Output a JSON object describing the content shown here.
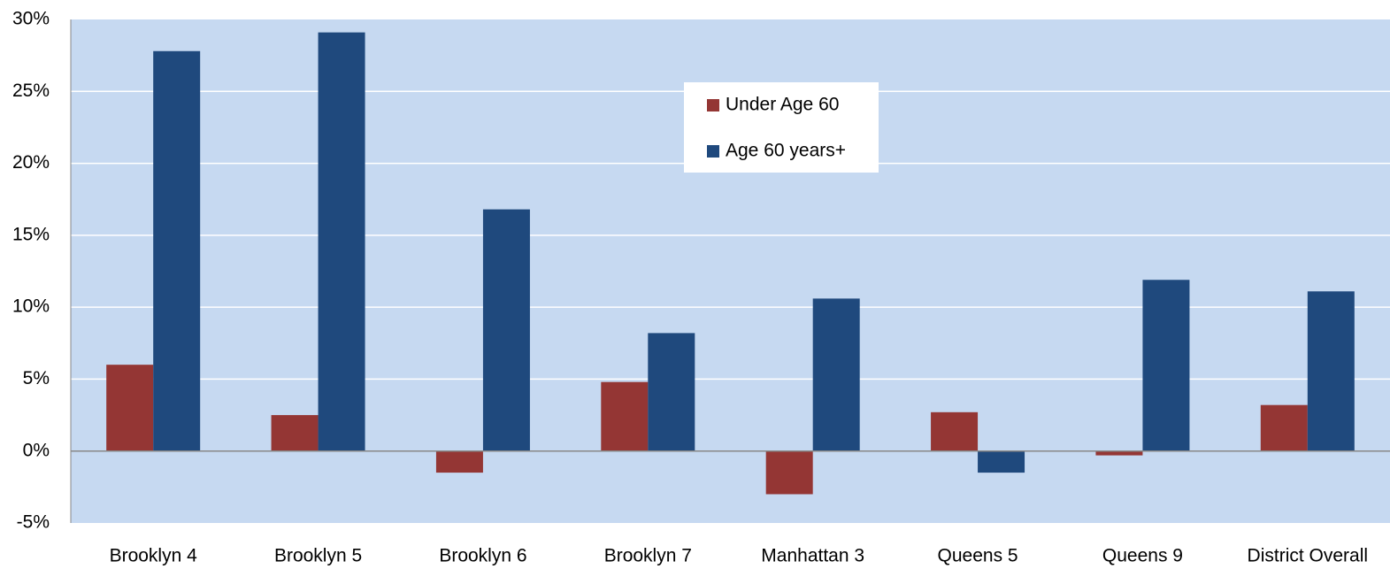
{
  "chart_data": {
    "type": "bar",
    "categories": [
      "Brooklyn 4",
      "Brooklyn 5",
      "Brooklyn 6",
      "Brooklyn 7",
      "Manhattan 3",
      "Queens 5",
      "Queens 9",
      "District Overall"
    ],
    "series": [
      {
        "name": "Under Age 60",
        "color": "#943634",
        "values": [
          6.0,
          2.5,
          -1.5,
          4.8,
          -3.0,
          2.7,
          -0.3,
          3.2
        ]
      },
      {
        "name": "Age 60 years+",
        "color": "#1f497d",
        "values": [
          27.8,
          29.1,
          16.8,
          8.2,
          10.6,
          -1.5,
          11.9,
          11.1
        ]
      }
    ],
    "ylim": [
      -5,
      30
    ],
    "yticks": [
      {
        "value": -5,
        "label": "-5%"
      },
      {
        "value": 0,
        "label": "0%"
      },
      {
        "value": 5,
        "label": "5%"
      },
      {
        "value": 10,
        "label": "10%"
      },
      {
        "value": 15,
        "label": "15%"
      },
      {
        "value": 20,
        "label": "20%"
      },
      {
        "value": 25,
        "label": "25%"
      },
      {
        "value": 30,
        "label": "30%"
      }
    ],
    "grid": true
  }
}
